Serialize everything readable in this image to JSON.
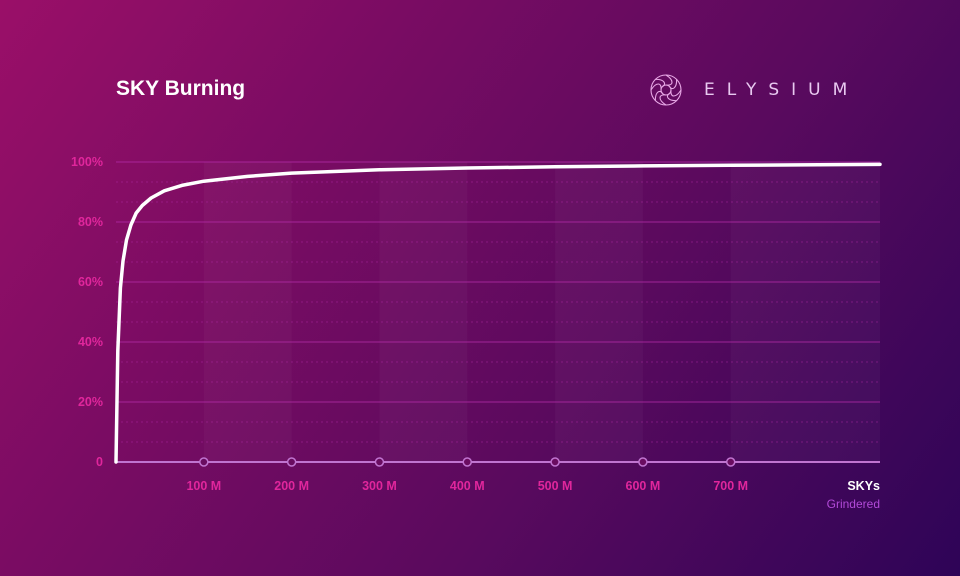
{
  "header": {
    "title": "SKY Burning",
    "brand": "ELYSIUM"
  },
  "colors": {
    "tick_label": "#e0269c",
    "line": "#ffffff",
    "axis": "#c074d0",
    "grid": "#b22aa6"
  },
  "chart_data": {
    "type": "line",
    "title": "SKY Burning",
    "xlabel": "SKYs",
    "xlabel_sub": "Grindered",
    "ylabel": "",
    "xlim": [
      0,
      870
    ],
    "ylim": [
      0,
      100
    ],
    "x_ticks": [
      100,
      200,
      300,
      400,
      500,
      600,
      700
    ],
    "x_tick_labels": [
      "100 M",
      "200 M",
      "300 M",
      "400 M",
      "500 M",
      "600 M",
      "700 M"
    ],
    "y_ticks": [
      0,
      20,
      40,
      60,
      80,
      100
    ],
    "y_tick_labels": [
      "0",
      "20%",
      "40%",
      "60%",
      "80%",
      "100%"
    ],
    "grid": true,
    "series": [
      {
        "x": [
          0,
          2,
          5,
          8,
          12,
          17,
          23,
          30,
          40,
          55,
          75,
          100,
          150,
          200,
          300,
          400,
          500,
          600,
          700,
          800,
          870
        ],
        "values": [
          0,
          37,
          58,
          67,
          74,
          79,
          83,
          85.5,
          88,
          90.4,
          92.2,
          93.6,
          95.2,
          96.3,
          97.4,
          98,
          98.4,
          98.7,
          98.9,
          99.1,
          99.2
        ]
      }
    ]
  }
}
